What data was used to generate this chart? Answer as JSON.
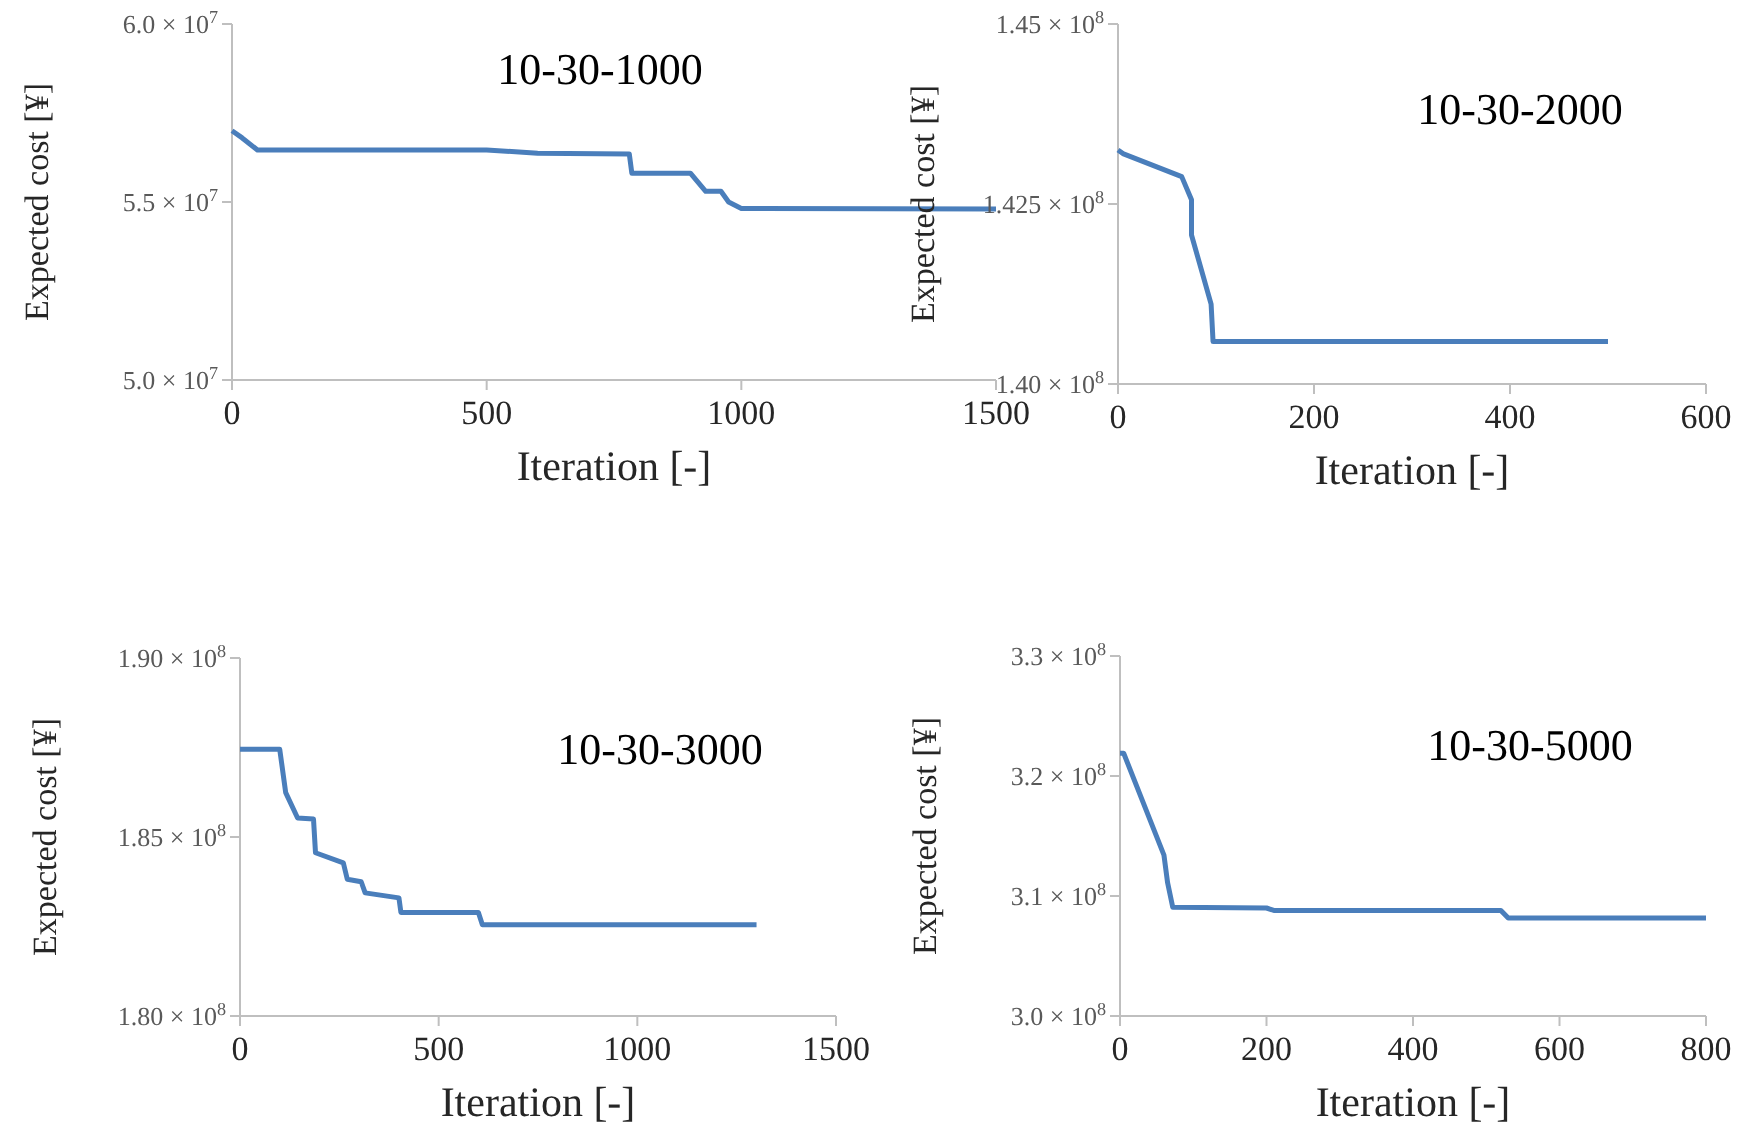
{
  "chart_data": [
    {
      "type": "line",
      "title": "10-30-1000",
      "xlabel": "Iteration [-]",
      "ylabel": "Expected cost [¥]",
      "color": "#4a7ebb",
      "xlim": [
        0,
        1500
      ],
      "xticks": [
        0,
        500,
        1000,
        1500
      ],
      "ylim": [
        50000000,
        60000000
      ],
      "yticks": [
        {
          "value": 50000000,
          "label": "5.0 × 10$^{7}$"
        },
        {
          "value": 55000000,
          "label": "5.5 × 10$^{7}$"
        },
        {
          "value": 60000000,
          "label": "6.0 × 10$^{7}$"
        }
      ],
      "x": [
        0,
        20,
        50,
        500,
        600,
        780,
        785,
        900,
        930,
        960,
        975,
        1000,
        1500
      ],
      "values": [
        57000000,
        56800000,
        56460000,
        56460000,
        56370000,
        56350000,
        55810000,
        55810000,
        55300000,
        55300000,
        55000000,
        54820000,
        54800000
      ]
    },
    {
      "type": "line",
      "title": "10-30-2000",
      "xlabel": "Iteration [-]",
      "ylabel": "Expected cost [¥]",
      "color": "#4a7ebb",
      "xlim": [
        0,
        600
      ],
      "xticks": [
        0,
        200,
        400,
        600
      ],
      "ylim": [
        140000000,
        145000000
      ],
      "yticks": [
        {
          "value": 140000000,
          "label": "1.40 × 10$^{8}$"
        },
        {
          "value": 142500000,
          "label": "1.425 × 10$^{8}$"
        },
        {
          "value": 145000000,
          "label": "1.45 × 10$^{8}$"
        }
      ],
      "x": [
        0,
        5,
        65,
        75,
        75,
        95,
        97,
        500
      ],
      "values": [
        143250000,
        143200000,
        142880000,
        142560000,
        142070000,
        141110000,
        140590000,
        140590000
      ]
    },
    {
      "type": "line",
      "title": "10-30-3000",
      "xlabel": "Iteration [-]",
      "ylabel": "Expected cost [¥]",
      "color": "#4a7ebb",
      "xlim": [
        0,
        1500
      ],
      "xticks": [
        0,
        500,
        1000,
        1500
      ],
      "ylim": [
        180000000,
        190000000
      ],
      "yticks": [
        {
          "value": 180000000,
          "label": "1.80 × 10$^{8}$"
        },
        {
          "value": 185000000,
          "label": "1.85 × 10$^{8}$"
        },
        {
          "value": 190000000,
          "label": "1.90 × 10$^{8}$"
        }
      ],
      "x": [
        0,
        100,
        115,
        145,
        185,
        190,
        260,
        270,
        305,
        315,
        400,
        405,
        600,
        610,
        1300
      ],
      "values": [
        187450000,
        187450000,
        186240000,
        185530000,
        185500000,
        184560000,
        184280000,
        183820000,
        183750000,
        183440000,
        183300000,
        182890000,
        182890000,
        182550000,
        182550000
      ]
    },
    {
      "type": "line",
      "title": "10-30-5000",
      "xlabel": "Iteration [-]",
      "ylabel": "Expected cost [¥]",
      "color": "#4a7ebb",
      "xlim": [
        0,
        800
      ],
      "xticks": [
        0,
        200,
        400,
        600,
        800
      ],
      "ylim": [
        300000000,
        330000000
      ],
      "yticks": [
        {
          "value": 300000000,
          "label": "3.0 × 10$^{8}$"
        },
        {
          "value": 310000000,
          "label": "3.1 × 10$^{8}$"
        },
        {
          "value": 320000000,
          "label": "3.2 × 10$^{8}$"
        },
        {
          "value": 330000000,
          "label": "3.3 × 10$^{8}$"
        }
      ],
      "x": [
        0,
        5,
        60,
        65,
        72,
        200,
        210,
        520,
        530,
        800
      ],
      "values": [
        321900000,
        321900000,
        313400000,
        311100000,
        309060000,
        309000000,
        308800000,
        308800000,
        308170000,
        308170000
      ]
    }
  ]
}
